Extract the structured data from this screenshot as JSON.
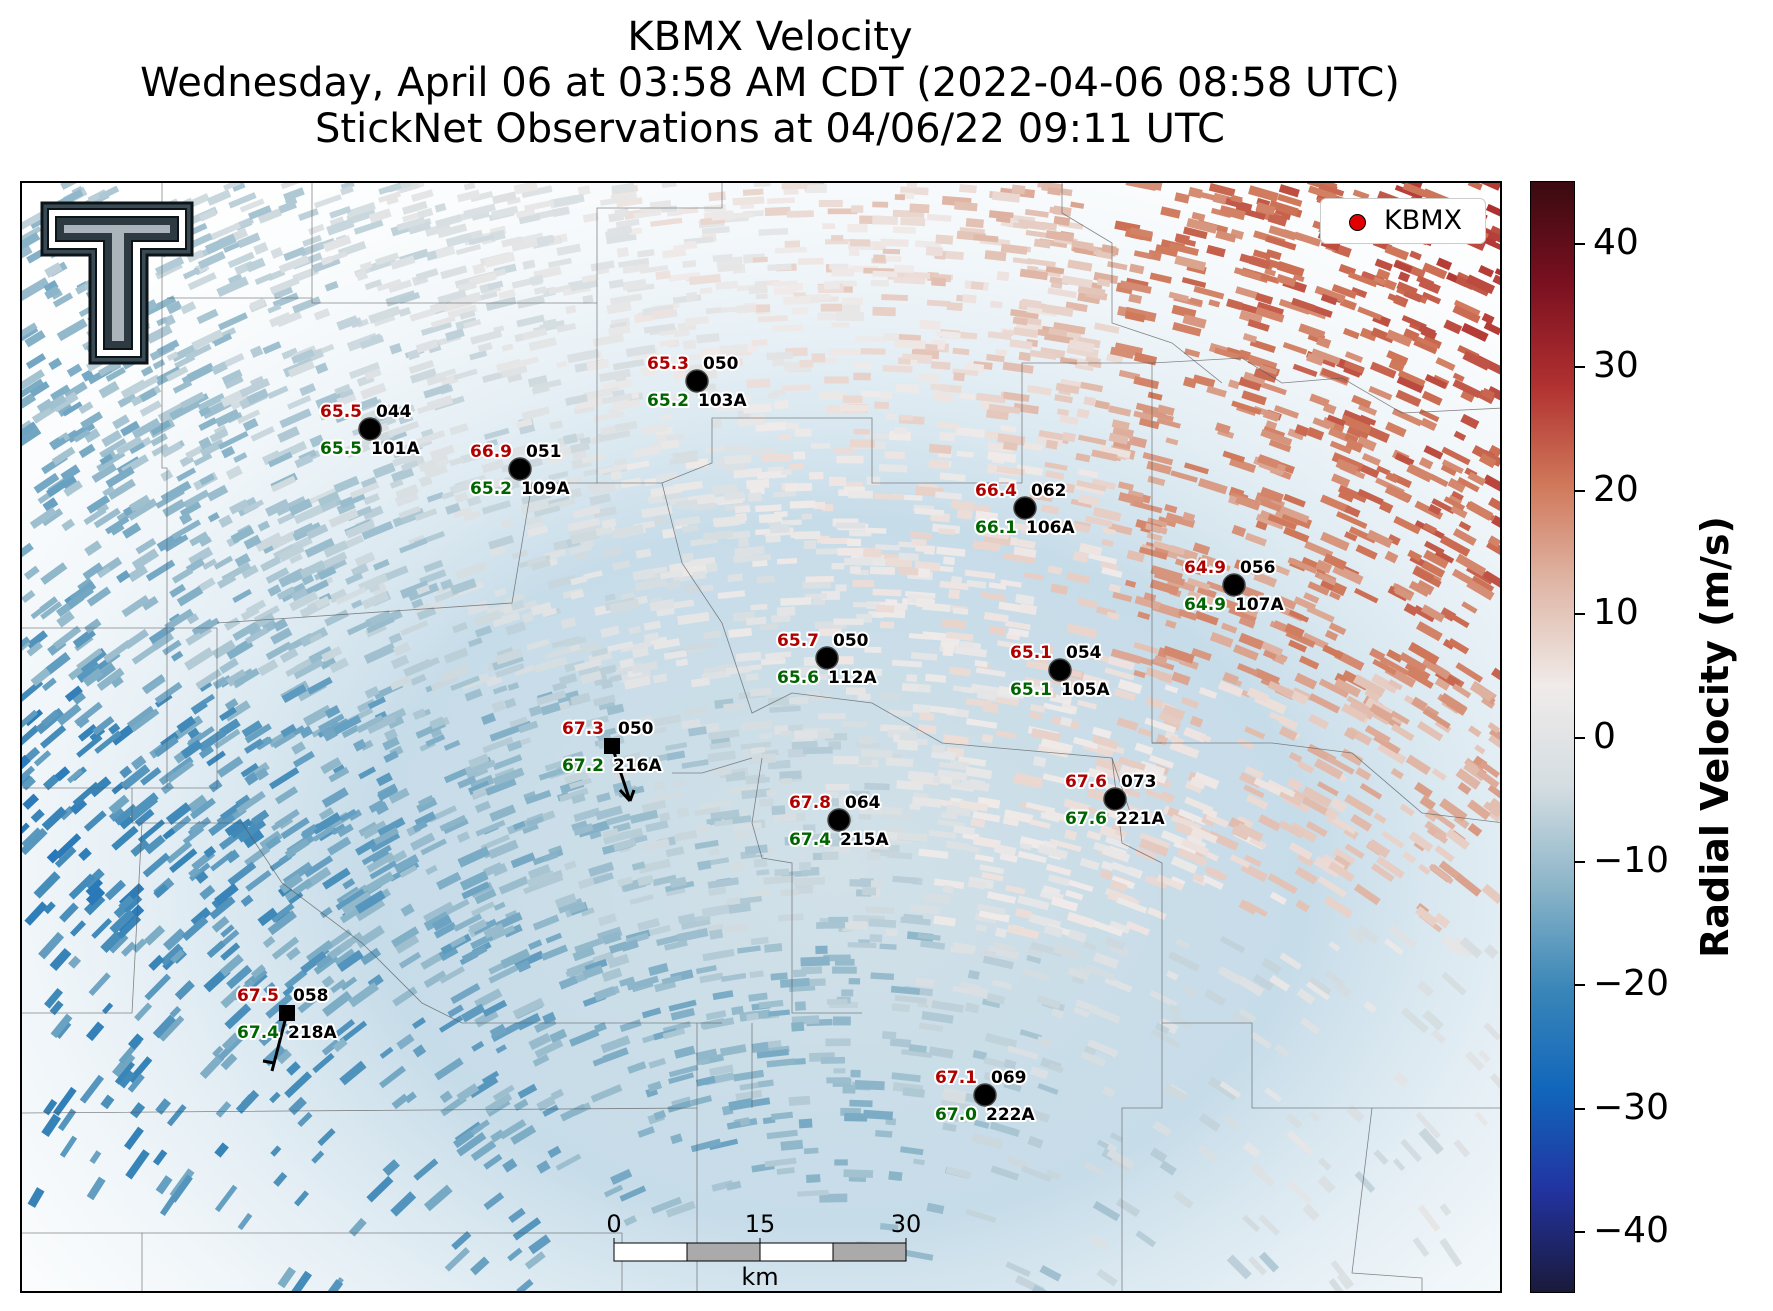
{
  "title": {
    "line1": "KBMX Velocity",
    "line2": "Wednesday, April 06 at 03:58 AM CDT (2022-04-06 08:58 UTC)",
    "line3": "StickNet Observations at 04/06/22 09:11 UTC"
  },
  "legend": {
    "label": "KBMX",
    "marker_color": "#e00000"
  },
  "colorbar": {
    "label": "Radial Velocity (m/s)",
    "min": -45,
    "max": 45,
    "ticks": [
      "40",
      "30",
      "20",
      "10",
      "0",
      "−10",
      "−20",
      "−30",
      "−40"
    ],
    "tick_values": [
      40,
      30,
      20,
      10,
      0,
      -10,
      -20,
      -30,
      -40
    ],
    "colors": [
      "#1a1a3a",
      "#2233a0",
      "#1166bb",
      "#3a86b8",
      "#8ab4c8",
      "#d4dde1",
      "#f0ebea",
      "#e0b8a8",
      "#d0785a",
      "#b03030",
      "#7a1020",
      "#3a0a10"
    ]
  },
  "scalebar": {
    "labels": [
      "0",
      "15",
      "30"
    ],
    "unit": "km"
  },
  "stations": [
    {
      "id": "101A",
      "temp": "65.5",
      "dew": "65.5",
      "wind": "044"
    },
    {
      "id": "109A",
      "temp": "66.9",
      "dew": "65.2",
      "wind": "051"
    },
    {
      "id": "103A",
      "temp": "65.3",
      "dew": "65.2",
      "wind": "050"
    },
    {
      "id": "106A",
      "temp": "66.4",
      "dew": "66.1",
      "wind": "062"
    },
    {
      "id": "107A",
      "temp": "64.9",
      "dew": "64.9",
      "wind": "056"
    },
    {
      "id": "112A",
      "temp": "65.7",
      "dew": "65.6",
      "wind": "050"
    },
    {
      "id": "105A",
      "temp": "65.1",
      "dew": "65.1",
      "wind": "054"
    },
    {
      "id": "216A",
      "temp": "67.3",
      "dew": "67.2",
      "wind": "050"
    },
    {
      "id": "215A",
      "temp": "67.8",
      "dew": "67.4",
      "wind": "064"
    },
    {
      "id": "221A",
      "temp": "67.6",
      "dew": "67.6",
      "wind": "073"
    },
    {
      "id": "218A",
      "temp": "67.5",
      "dew": "67.4",
      "wind": "058"
    },
    {
      "id": "222A",
      "temp": "67.1",
      "dew": "67.0",
      "wind": "069"
    }
  ],
  "logo": {
    "text": "T"
  }
}
